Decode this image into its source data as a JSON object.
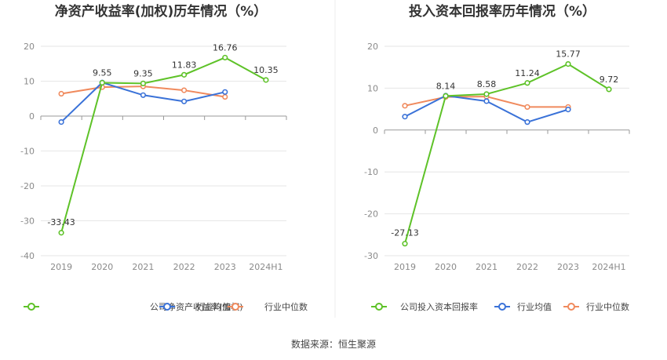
{
  "source_text": "数据来源：恒生聚源",
  "colors": {
    "company": "#5ec228",
    "avg": "#3a72d8",
    "median": "#f08a5d",
    "grid": "#e6e6e6",
    "axis": "#999999"
  },
  "chart_data": [
    {
      "type": "line",
      "title": "净资产收益率(加权)历年情况（%）",
      "categories": [
        "2019",
        "2020",
        "2021",
        "2022",
        "2023",
        "2024H1"
      ],
      "yticks": [
        "20",
        "10",
        "0",
        "-10",
        "-20",
        "-30",
        "-40"
      ],
      "ylim": [
        -40,
        20
      ],
      "grid": true,
      "legend_position": "bottom",
      "series": [
        {
          "name": "公司净资产收益率(加权)",
          "values": [
            -33.43,
            9.55,
            9.35,
            11.83,
            16.76,
            10.35
          ],
          "labels": [
            "-33.43",
            "9.55",
            "9.35",
            "11.83",
            "16.76",
            "10.35"
          ]
        },
        {
          "name": "行业均值",
          "values": [
            -1.7,
            9.6,
            6.0,
            4.2,
            6.9,
            null
          ]
        },
        {
          "name": "行业中位数",
          "values": [
            6.4,
            8.3,
            8.5,
            7.4,
            5.5,
            null
          ]
        }
      ]
    },
    {
      "type": "line",
      "title": "投入资本回报率历年情况（%）",
      "categories": [
        "2019",
        "2020",
        "2021",
        "2022",
        "2023",
        "2024H1"
      ],
      "yticks": [
        "20",
        "10",
        "0",
        "-10",
        "-20",
        "-30"
      ],
      "ylim": [
        -30,
        20
      ],
      "grid": true,
      "legend_position": "bottom",
      "series": [
        {
          "name": "公司投入资本回报率",
          "values": [
            -27.13,
            8.14,
            8.58,
            11.24,
            15.77,
            9.72
          ],
          "labels": [
            "-27.13",
            "8.14",
            "8.58",
            "11.24",
            "15.77",
            "9.72"
          ]
        },
        {
          "name": "行业均值",
          "values": [
            3.2,
            8.2,
            6.9,
            1.9,
            4.9,
            null
          ]
        },
        {
          "name": "行业中位数",
          "values": [
            5.8,
            7.9,
            8.0,
            5.5,
            5.5,
            null
          ]
        }
      ]
    }
  ]
}
